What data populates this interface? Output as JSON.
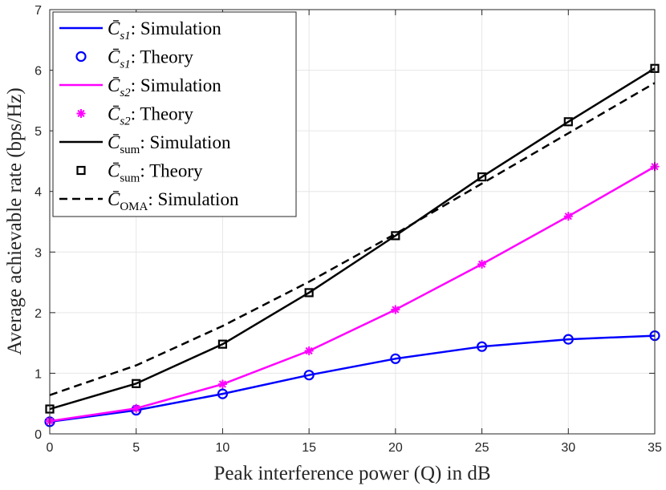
{
  "chart_data": {
    "type": "line",
    "xlabel": "Peak interference power (Q) in dB",
    "ylabel": "Average achievable rate (bps/Hz)",
    "xlim": [
      0,
      35
    ],
    "ylim": [
      0,
      7
    ],
    "x_ticks": [
      0,
      5,
      10,
      15,
      20,
      25,
      30,
      35
    ],
    "y_ticks": [
      0,
      1,
      2,
      3,
      4,
      5,
      6,
      7
    ],
    "grid": true,
    "legend_position": "top-left",
    "x": [
      0,
      5,
      10,
      15,
      20,
      25,
      30,
      35
    ],
    "series": [
      {
        "name": "C̄_s1: Simulation",
        "legend_main": "C̄",
        "legend_sub": "s1",
        "legend_suffix": ": Simulation",
        "style": "solid",
        "marker": "none",
        "color": "#0000ff",
        "values": [
          0.2,
          0.39,
          0.66,
          0.97,
          1.24,
          1.44,
          1.56,
          1.62
        ]
      },
      {
        "name": "C̄_s1: Theory",
        "legend_main": "C̄",
        "legend_sub": "s1",
        "legend_suffix": ": Theory",
        "style": "none",
        "marker": "circle",
        "color": "#0000ff",
        "values": [
          0.2,
          0.39,
          0.66,
          0.97,
          1.24,
          1.44,
          1.56,
          1.62
        ]
      },
      {
        "name": "C̄_s2: Simulation",
        "legend_main": "C̄",
        "legend_sub": "s2",
        "legend_suffix": ": Simulation",
        "style": "solid",
        "marker": "none",
        "color": "#ff00ff",
        "values": [
          0.21,
          0.42,
          0.82,
          1.37,
          2.05,
          2.8,
          3.59,
          4.41
        ]
      },
      {
        "name": "C̄_s2: Theory",
        "legend_main": "C̄",
        "legend_sub": "s2",
        "legend_suffix": ": Theory",
        "style": "none",
        "marker": "asterisk",
        "color": "#ff00ff",
        "values": [
          0.21,
          0.42,
          0.82,
          1.37,
          2.05,
          2.8,
          3.59,
          4.41
        ]
      },
      {
        "name": "C̄_sum: Simulation",
        "legend_main": "C̄",
        "legend_sub": "sum",
        "legend_suffix": ": Simulation",
        "style": "solid",
        "marker": "none",
        "color": "#000000",
        "values": [
          0.41,
          0.83,
          1.48,
          2.33,
          3.27,
          4.24,
          5.15,
          6.03
        ]
      },
      {
        "name": "C̄_sum: Theory",
        "legend_main": "C̄",
        "legend_sub": "sum",
        "legend_suffix": ": Theory",
        "style": "none",
        "marker": "square",
        "color": "#000000",
        "values": [
          0.41,
          0.83,
          1.48,
          2.33,
          3.27,
          4.24,
          5.15,
          6.03
        ]
      },
      {
        "name": "C̄_OMA: Simulation",
        "legend_main": "C̄",
        "legend_sub": "OMA",
        "legend_suffix": ": Simulation",
        "style": "dashed",
        "marker": "none",
        "color": "#000000",
        "values": [
          0.64,
          1.13,
          1.78,
          2.51,
          3.3,
          4.13,
          4.96,
          5.79
        ]
      }
    ]
  }
}
